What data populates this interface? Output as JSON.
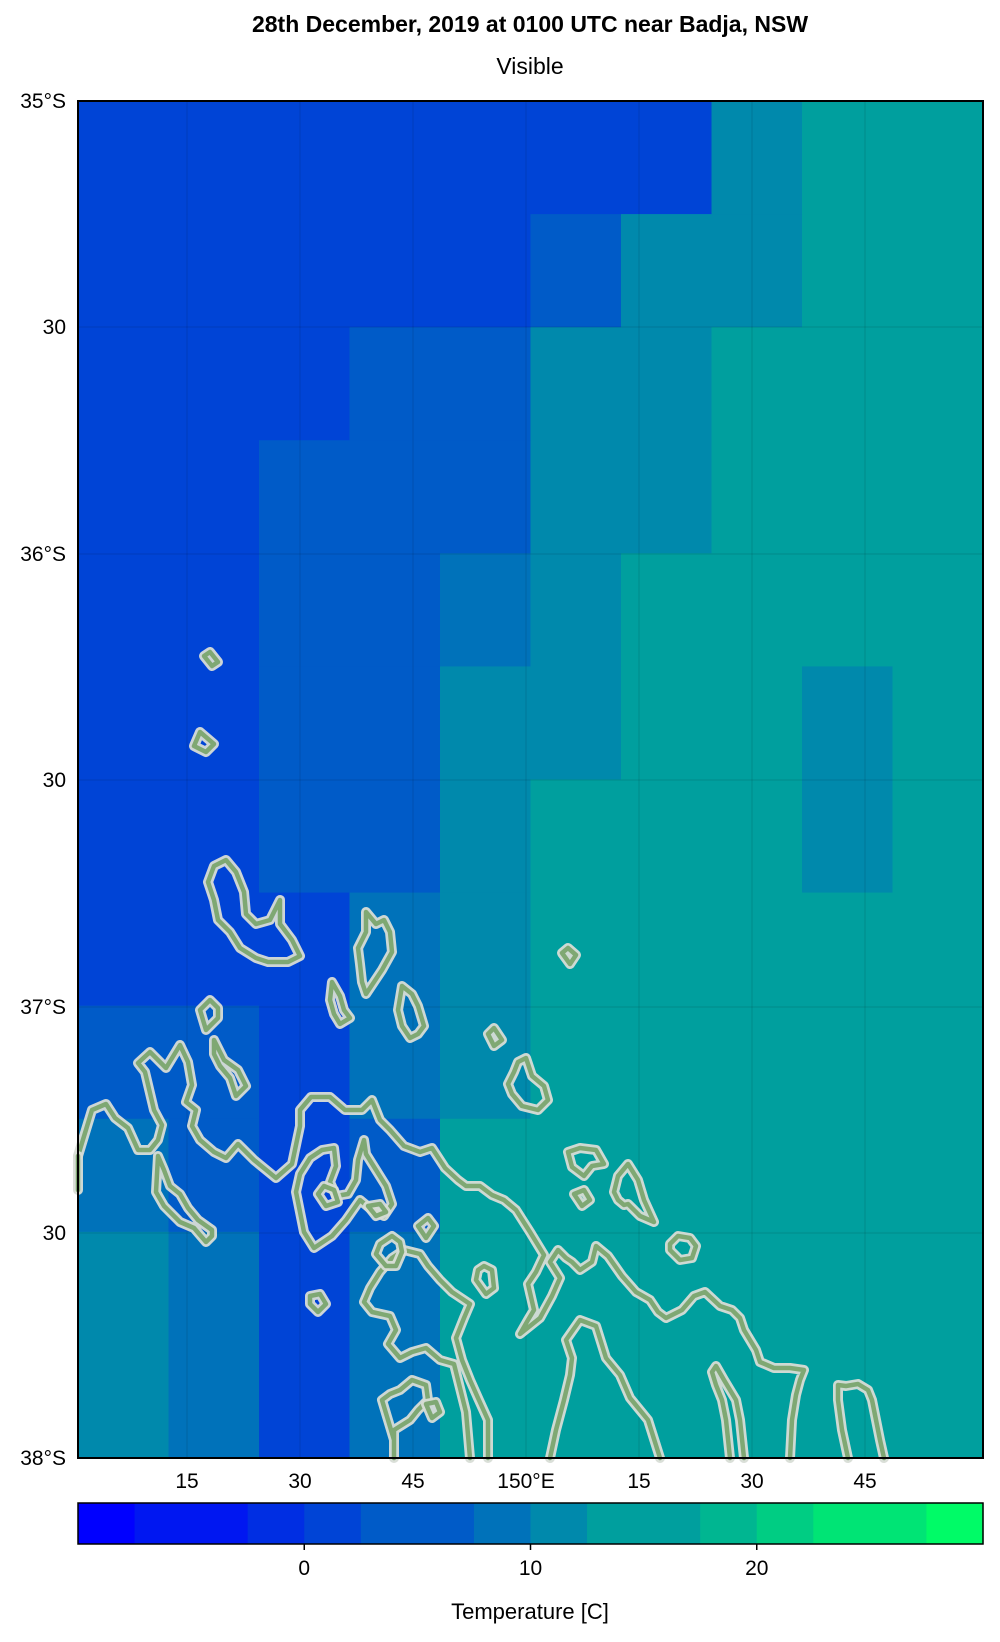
{
  "figure": {
    "title": "28th December, 2019 at 0100 UTC near Badja, NSW",
    "subtitle": "Visible"
  },
  "map": {
    "lon_range": [
      149.0,
      150.6
    ],
    "lat_range": [
      -38.0,
      -35.0
    ],
    "lat_tick_labels": [
      "35°S",
      "30",
      "36°S",
      "30",
      "37°S",
      "30",
      "38°S"
    ],
    "lon_tick_labels": [
      "15",
      "30",
      "45",
      "150°E",
      "15",
      "30",
      "45"
    ],
    "contour_color": "#7fa873",
    "contour_halo_color": "#d8ddd6",
    "temperature_grid_C": [
      [
        1,
        1,
        2,
        2,
        2,
        3,
        3,
        11,
        15,
        15
      ],
      [
        1,
        3,
        3,
        3,
        3,
        5,
        10,
        11,
        16,
        16
      ],
      [
        1,
        3,
        3,
        4,
        4,
        10,
        10,
        16,
        16,
        16
      ],
      [
        1,
        3,
        5,
        4,
        6,
        10,
        10,
        16,
        16,
        16
      ],
      [
        1,
        3,
        5,
        4,
        8,
        13,
        14,
        16,
        16,
        16
      ],
      [
        1,
        3,
        5,
        5,
        10,
        13,
        16,
        16,
        13,
        16
      ],
      [
        1,
        3,
        4,
        4,
        10,
        16,
        16,
        16,
        13,
        16
      ],
      [
        1,
        3,
        2,
        9,
        10,
        16,
        16,
        16,
        16,
        16
      ],
      [
        5,
        5,
        2,
        9,
        10,
        16,
        16,
        16,
        16,
        16
      ],
      [
        9,
        6,
        0,
        6,
        14,
        16,
        16,
        16,
        16,
        16
      ],
      [
        10,
        9,
        2,
        8,
        15,
        16,
        16,
        16,
        16,
        16
      ],
      [
        10,
        9,
        2,
        8,
        15,
        16,
        16,
        16,
        16,
        16
      ]
    ]
  },
  "colorbar": {
    "label": "Temperature [C]",
    "range": [
      -10,
      30
    ],
    "tick_labels": [
      "0",
      "10",
      "20"
    ],
    "tick_values": [
      0,
      10,
      20
    ],
    "colors": [
      "#0000ff",
      "#0017f1",
      "#002ee3",
      "#0044d6",
      "#005bc8",
      "#0072ba",
      "#0089ac",
      "#009f9e",
      "#00b691",
      "#00cd83",
      "#00e475",
      "#00fb67"
    ]
  }
}
